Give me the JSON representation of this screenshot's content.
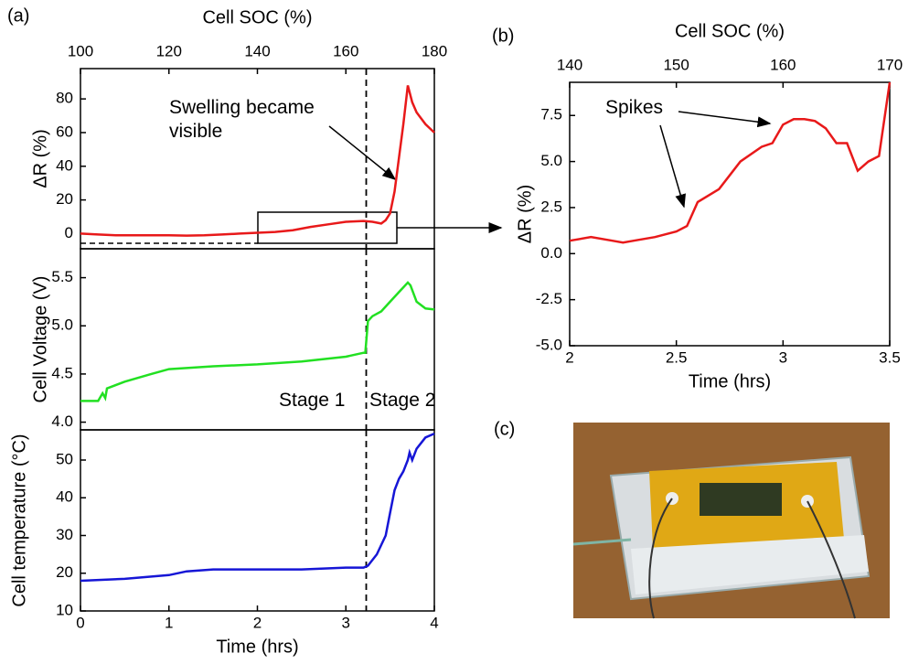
{
  "panel_labels": [
    "(a)",
    "(b)",
    "(c)"
  ],
  "chart_data": [
    {
      "type": "line",
      "x2label": "Cell SOC (%)",
      "ylabel": "ΔR (%)",
      "xlim": [
        0,
        4
      ],
      "x2lim": [
        100,
        180
      ],
      "x2ticks": [
        100,
        120,
        140,
        160,
        180
      ],
      "ylim": [
        -9,
        98
      ],
      "yticks": [
        0,
        20,
        40,
        60,
        80
      ],
      "vline": 3.23,
      "annotations": [
        "Swelling became\nvisible"
      ],
      "x": [
        0,
        0.2,
        0.4,
        0.6,
        0.8,
        1.0,
        1.2,
        1.4,
        1.6,
        1.8,
        2.0,
        2.2,
        2.4,
        2.6,
        2.8,
        3.0,
        3.2,
        3.3,
        3.4,
        3.45,
        3.5,
        3.55,
        3.6,
        3.65,
        3.7,
        3.75,
        3.8,
        3.9,
        4.0
      ],
      "series": [
        {
          "color": "#e8191a",
          "values": [
            0,
            -0.5,
            -1,
            -1,
            -1,
            -1,
            -1.2,
            -1,
            -0.5,
            0,
            0.5,
            1,
            2,
            4,
            5.5,
            7,
            7.5,
            7,
            6,
            8,
            12,
            25,
            45,
            65,
            88,
            78,
            72,
            65,
            60
          ]
        }
      ]
    },
    {
      "type": "line",
      "ylabel": "Cell Voltage (V)",
      "xlim": [
        0,
        4
      ],
      "ylim": [
        3.92,
        5.8
      ],
      "yticks": [
        {
          "value": 4,
          "label": "4.0"
        },
        4.5,
        {
          "value": 5,
          "label": "5.0"
        },
        5.5
      ],
      "vline": 3.23,
      "annotations": [
        "Stage 1",
        "Stage 2"
      ],
      "x": [
        0,
        0.2,
        0.25,
        0.28,
        0.3,
        0.5,
        0.8,
        1,
        1.5,
        2,
        2.5,
        3,
        3.2,
        3.22,
        3.25,
        3.3,
        3.4,
        3.5,
        3.6,
        3.7,
        3.73,
        3.8,
        3.9,
        4.0
      ],
      "series": [
        {
          "color": "#22e022",
          "values": [
            4.22,
            4.22,
            4.3,
            4.25,
            4.35,
            4.42,
            4.5,
            4.55,
            4.58,
            4.6,
            4.63,
            4.68,
            4.72,
            4.72,
            5.05,
            5.1,
            5.15,
            5.25,
            5.35,
            5.45,
            5.42,
            5.25,
            5.18,
            5.17
          ]
        }
      ]
    },
    {
      "type": "line",
      "xlabel": "Time (hrs)",
      "ylabel": "Cell temperature (°C)",
      "xlim": [
        0,
        4
      ],
      "xticks": [
        0,
        1,
        2,
        3,
        4
      ],
      "ylim": [
        10,
        58
      ],
      "yticks": [
        10,
        20,
        30,
        40,
        50
      ],
      "vline": 3.23,
      "x": [
        0,
        0.5,
        1,
        1.2,
        1.5,
        2,
        2.5,
        3,
        3.2,
        3.25,
        3.35,
        3.45,
        3.5,
        3.55,
        3.6,
        3.65,
        3.7,
        3.72,
        3.75,
        3.8,
        3.9,
        4.0
      ],
      "series": [
        {
          "color": "#1616d6",
          "values": [
            18,
            18.5,
            19.5,
            20.5,
            21,
            21,
            21,
            21.5,
            21.5,
            22,
            25,
            30,
            36,
            42,
            45,
            47,
            50,
            52,
            50,
            53,
            56,
            57
          ]
        }
      ]
    },
    {
      "type": "line",
      "x2label": "Cell SOC (%)",
      "xlabel": "Time (hrs)",
      "ylabel": "ΔR (%)",
      "xlim": [
        2,
        3.5
      ],
      "xticks": [
        2,
        2.5,
        3,
        3.5
      ],
      "x2lim": [
        140,
        170
      ],
      "x2ticks": [
        140,
        150,
        160,
        170
      ],
      "ylim": [
        -5,
        9.3
      ],
      "yticks": [
        {
          "value": -5,
          "label": "-5.0"
        },
        -2.5,
        {
          "value": 0,
          "label": "0.0"
        },
        2.5,
        {
          "value": 5,
          "label": "5.0"
        },
        7.5
      ],
      "annotations": [
        "Spikes"
      ],
      "x": [
        2.0,
        2.1,
        2.2,
        2.25,
        2.3,
        2.4,
        2.5,
        2.55,
        2.6,
        2.7,
        2.8,
        2.9,
        2.95,
        3.0,
        3.05,
        3.1,
        3.15,
        3.2,
        3.25,
        3.3,
        3.35,
        3.4,
        3.45,
        3.5
      ],
      "series": [
        {
          "color": "#e8191a",
          "values": [
            0.7,
            0.9,
            0.7,
            0.6,
            0.7,
            0.9,
            1.2,
            1.5,
            2.8,
            3.5,
            5.0,
            5.8,
            6.0,
            7.0,
            7.3,
            7.3,
            7.2,
            6.8,
            6.0,
            6.0,
            4.5,
            5.0,
            5.3,
            9.3
          ]
        }
      ]
    }
  ]
}
